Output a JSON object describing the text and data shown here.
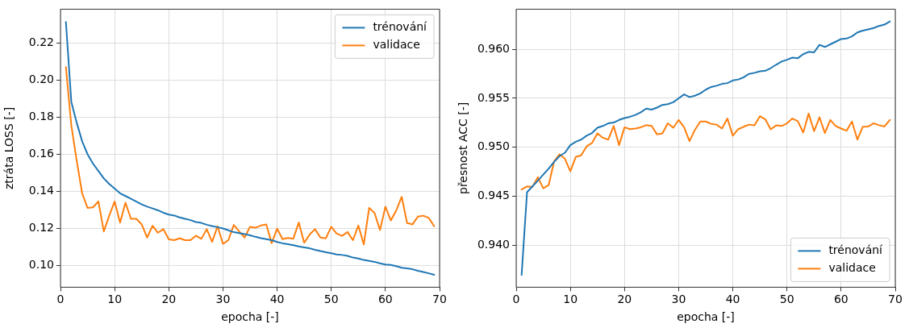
{
  "chart_data": [
    {
      "type": "line",
      "xlabel": "epocha [-]",
      "ylabel": "ztráta LOSS [-]",
      "x": [
        1,
        2,
        3,
        4,
        5,
        6,
        7,
        8,
        9,
        10,
        11,
        12,
        13,
        14,
        15,
        16,
        17,
        18,
        19,
        20,
        21,
        22,
        23,
        24,
        25,
        26,
        27,
        28,
        29,
        30,
        31,
        32,
        33,
        34,
        35,
        36,
        37,
        38,
        39,
        40,
        41,
        42,
        43,
        44,
        45,
        46,
        47,
        48,
        49,
        50,
        51,
        52,
        53,
        54,
        55,
        56,
        57,
        58,
        59,
        60,
        61,
        62,
        63,
        64,
        65,
        66,
        67,
        68,
        69
      ],
      "series": [
        {
          "name": "trénování",
          "color": "#1f77b4",
          "values": [
            0.2314,
            0.1883,
            0.177,
            0.167,
            0.16,
            0.155,
            0.151,
            0.147,
            0.144,
            0.1415,
            0.139,
            0.1375,
            0.136,
            0.1345,
            0.133,
            0.1318,
            0.1308,
            0.1298,
            0.1285,
            0.1275,
            0.127,
            0.126,
            0.1252,
            0.1245,
            0.1235,
            0.123,
            0.122,
            0.1213,
            0.1207,
            0.12,
            0.119,
            0.118,
            0.1175,
            0.117,
            0.1163,
            0.1155,
            0.1148,
            0.1142,
            0.1137,
            0.1127,
            0.112,
            0.1115,
            0.111,
            0.1103,
            0.1098,
            0.1093,
            0.1085,
            0.1078,
            0.1072,
            0.1066,
            0.106,
            0.1057,
            0.1052,
            0.1043,
            0.1038,
            0.103,
            0.1025,
            0.102,
            0.1012,
            0.1005,
            0.1003,
            0.0997,
            0.0988,
            0.0985,
            0.098,
            0.0972,
            0.0965,
            0.0958,
            0.095
          ]
        },
        {
          "name": "validace",
          "color": "#ff7f0e",
          "values": [
            0.2071,
            0.1756,
            0.1565,
            0.1389,
            0.1311,
            0.1314,
            0.1346,
            0.1184,
            0.1269,
            0.1346,
            0.1232,
            0.1339,
            0.1252,
            0.1252,
            0.1222,
            0.1151,
            0.1215,
            0.1177,
            0.1196,
            0.1141,
            0.1137,
            0.1147,
            0.1137,
            0.1137,
            0.1161,
            0.1144,
            0.1196,
            0.1128,
            0.1212,
            0.1117,
            0.1137,
            0.1219,
            0.1184,
            0.1151,
            0.1209,
            0.1204,
            0.1216,
            0.1222,
            0.112,
            0.1199,
            0.1142,
            0.1149,
            0.1145,
            0.1232,
            0.1123,
            0.1167,
            0.1196,
            0.1151,
            0.1147,
            0.1209,
            0.1172,
            0.116,
            0.1181,
            0.1137,
            0.1216,
            0.1114,
            0.1311,
            0.1283,
            0.1191,
            0.1318,
            0.1243,
            0.1297,
            0.1371,
            0.1229,
            0.1222,
            0.1264,
            0.1269,
            0.1257,
            0.1212
          ]
        }
      ],
      "xlim": [
        0,
        70
      ],
      "xticks": [
        0,
        10,
        20,
        30,
        40,
        50,
        60,
        70
      ],
      "ylim": [
        0.0883,
        0.2383
      ],
      "yticks": [
        {
          "value": 0.1,
          "label": "0.10"
        },
        0.12,
        0.14,
        0.16,
        0.18,
        {
          "value": 0.2,
          "label": "0.20"
        },
        0.22
      ],
      "grid": true,
      "legend": "top right",
      "marker": "none",
      "line_style": "solid"
    },
    {
      "type": "line",
      "xlabel": "epocha [-]",
      "ylabel": "přesnost ACC [-]",
      "x": [
        1,
        2,
        3,
        4,
        5,
        6,
        7,
        8,
        9,
        10,
        11,
        12,
        13,
        14,
        15,
        16,
        17,
        18,
        19,
        20,
        21,
        22,
        23,
        24,
        25,
        26,
        27,
        28,
        29,
        30,
        31,
        32,
        33,
        34,
        35,
        36,
        37,
        38,
        39,
        40,
        41,
        42,
        43,
        44,
        45,
        46,
        47,
        48,
        49,
        50,
        51,
        52,
        53,
        54,
        55,
        56,
        57,
        58,
        59,
        60,
        61,
        62,
        63,
        64,
        65,
        66,
        67,
        68,
        69
      ],
      "series": [
        {
          "name": "trénování",
          "color": "#1f77b4",
          "values": [
            0.93696,
            0.94541,
            0.946,
            0.94659,
            0.9472,
            0.94783,
            0.9485,
            0.94909,
            0.94944,
            0.95021,
            0.95056,
            0.95078,
            0.95118,
            0.95145,
            0.95199,
            0.95217,
            0.95244,
            0.95252,
            0.95279,
            0.95298,
            0.95311,
            0.9533,
            0.95357,
            0.95395,
            0.95384,
            0.95405,
            0.95432,
            0.9544,
            0.95459,
            0.955,
            0.9554,
            0.95513,
            0.95526,
            0.9555,
            0.95588,
            0.95615,
            0.95628,
            0.95647,
            0.95655,
            0.95682,
            0.95692,
            0.95714,
            0.95749,
            0.9576,
            0.95776,
            0.95781,
            0.95808,
            0.95843,
            0.95875,
            0.95894,
            0.95915,
            0.9591,
            0.9595,
            0.95974,
            0.95969,
            0.96046,
            0.96024,
            0.96051,
            0.96078,
            0.96105,
            0.9611,
            0.96132,
            0.96172,
            0.96191,
            0.96204,
            0.96218,
            0.96239,
            0.96252,
            0.96285
          ]
        },
        {
          "name": "validace",
          "color": "#ff7f0e",
          "values": [
            0.94568,
            0.946,
            0.94595,
            0.94694,
            0.94581,
            0.94614,
            0.94855,
            0.94928,
            0.94882,
            0.94753,
            0.94901,
            0.94917,
            0.95008,
            0.95043,
            0.95142,
            0.95097,
            0.95078,
            0.95217,
            0.95021,
            0.95204,
            0.95185,
            0.95191,
            0.95204,
            0.95225,
            0.95217,
            0.95132,
            0.95142,
            0.95244,
            0.95199,
            0.95279,
            0.95204,
            0.95062,
            0.95177,
            0.95263,
            0.95263,
            0.95239,
            0.95231,
            0.95191,
            0.95293,
            0.95118,
            0.95185,
            0.95209,
            0.95231,
            0.95223,
            0.95317,
            0.95285,
            0.95183,
            0.95223,
            0.95217,
            0.95244,
            0.95293,
            0.95266,
            0.9515,
            0.95344,
            0.95164,
            0.95306,
            0.95145,
            0.95279,
            0.95217,
            0.95191,
            0.95169,
            0.95263,
            0.95078,
            0.95209,
            0.95212,
            0.95244,
            0.95225,
            0.95212,
            0.95279
          ]
        }
      ],
      "xlim": [
        0,
        70
      ],
      "xticks": [
        0,
        10,
        20,
        30,
        40,
        50,
        60,
        70
      ],
      "ylim": [
        0.9357,
        0.9641
      ],
      "yticks": [
        {
          "value": 0.94,
          "label": "0.940"
        },
        0.945,
        {
          "value": 0.95,
          "label": "0.950"
        },
        0.955,
        {
          "value": 0.96,
          "label": "0.960"
        }
      ],
      "grid": true,
      "legend": "bottom right",
      "marker": "none",
      "line_style": "solid"
    }
  ]
}
